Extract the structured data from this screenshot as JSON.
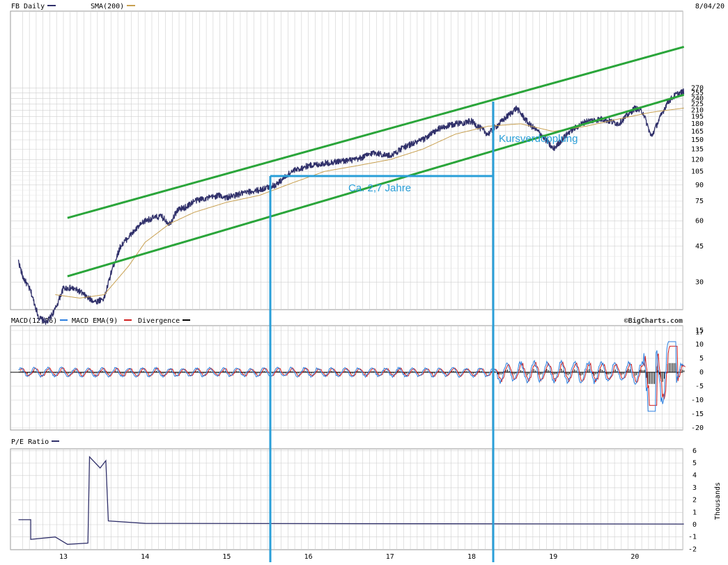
{
  "header": {
    "title": "FB Daily",
    "sma_label": "SMA(200)",
    "date": "8/04/20"
  },
  "colors": {
    "price": "#30306a",
    "sma": "#c8a050",
    "channel": "#2aa53a",
    "annotation": "#2a9fd8",
    "grid": "#cfcfcf",
    "macd": "#2b7fe0",
    "macd_ema": "#d02020",
    "divergence": "#000000",
    "pe": "#30306a"
  },
  "price_panel": {
    "y_ticks": [
      "270",
      "255",
      "240",
      "225",
      "210",
      "195",
      "180",
      "165",
      "150",
      "135",
      "120",
      "105",
      "90",
      "75",
      "60",
      "45",
      "30",
      "17"
    ],
    "scale": "log"
  },
  "macd_panel": {
    "label_macd": "MACD(12,26)",
    "label_ema": "MACD EMA(9)",
    "label_div": "Divergence",
    "brand": "©BigCharts.com",
    "y_ticks": [
      "15",
      "10",
      "5",
      "0",
      "-5",
      "-10",
      "-15",
      "-20"
    ]
  },
  "pe_panel": {
    "label": "P/E Ratio",
    "unit": "Thousands",
    "y_ticks": [
      "6",
      "5",
      "4",
      "3",
      "2",
      "1",
      "0",
      "-1",
      "-2"
    ]
  },
  "x_ticks": [
    "13",
    "14",
    "15",
    "16",
    "17",
    "18",
    "19",
    "20"
  ],
  "annotations": {
    "doubling": "Kursverdopplung",
    "duration": "Ca. 2,7 Jahre"
  },
  "chart_data": {
    "type": "line",
    "title": "FB Daily",
    "x_axis": "year (2012.45–2020.6)",
    "series": [
      {
        "name": "FB Daily",
        "x": [
          2012.45,
          2012.5,
          2012.6,
          2012.7,
          2012.8,
          2012.9,
          2013.0,
          2013.1,
          2013.2,
          2013.3,
          2013.4,
          2013.5,
          2013.6,
          2013.7,
          2013.8,
          2013.9,
          2014.0,
          2014.1,
          2014.2,
          2014.3,
          2014.4,
          2014.5,
          2014.6,
          2014.7,
          2014.8,
          2014.9,
          2015.0,
          2015.2,
          2015.4,
          2015.6,
          2015.8,
          2016.0,
          2016.2,
          2016.4,
          2016.6,
          2016.8,
          2017.0,
          2017.2,
          2017.4,
          2017.6,
          2017.8,
          2018.0,
          2018.2,
          2018.4,
          2018.55,
          2018.7,
          2018.85,
          2019.0,
          2019.2,
          2019.4,
          2019.6,
          2019.8,
          2020.0,
          2020.1,
          2020.2,
          2020.3,
          2020.4,
          2020.5,
          2020.6
        ],
        "values": [
          38,
          32,
          27,
          20,
          19,
          22,
          28,
          28,
          27,
          25,
          24,
          25,
          35,
          45,
          50,
          55,
          60,
          62,
          63,
          58,
          68,
          70,
          75,
          77,
          78,
          80,
          78,
          82,
          85,
          90,
          105,
          112,
          115,
          118,
          120,
          130,
          125,
          140,
          150,
          170,
          180,
          185,
          160,
          190,
          215,
          180,
          160,
          135,
          165,
          185,
          190,
          180,
          215,
          205,
          155,
          190,
          230,
          250,
          260
        ]
      },
      {
        "name": "SMA(200)",
        "x": [
          2012.9,
          2013.2,
          2013.5,
          2013.8,
          2014.0,
          2014.3,
          2014.6,
          2015.0,
          2015.4,
          2015.8,
          2016.2,
          2016.6,
          2017.0,
          2017.4,
          2017.8,
          2018.2,
          2018.6,
          2019.0,
          2019.4,
          2019.8,
          2020.2,
          2020.6
        ],
        "values": [
          26,
          25,
          26,
          36,
          47,
          58,
          66,
          74,
          80,
          92,
          105,
          112,
          120,
          135,
          160,
          175,
          180,
          165,
          175,
          190,
          205,
          215
        ]
      }
    ],
    "ylim": [
      17,
      270
    ],
    "channel_lines": [
      {
        "x": [
          2013.05,
          2020.6
        ],
        "values": [
          32,
          250
        ]
      },
      {
        "x": [
          2013.05,
          2020.6
        ],
        "values": [
          62,
          430
        ]
      }
    ]
  }
}
